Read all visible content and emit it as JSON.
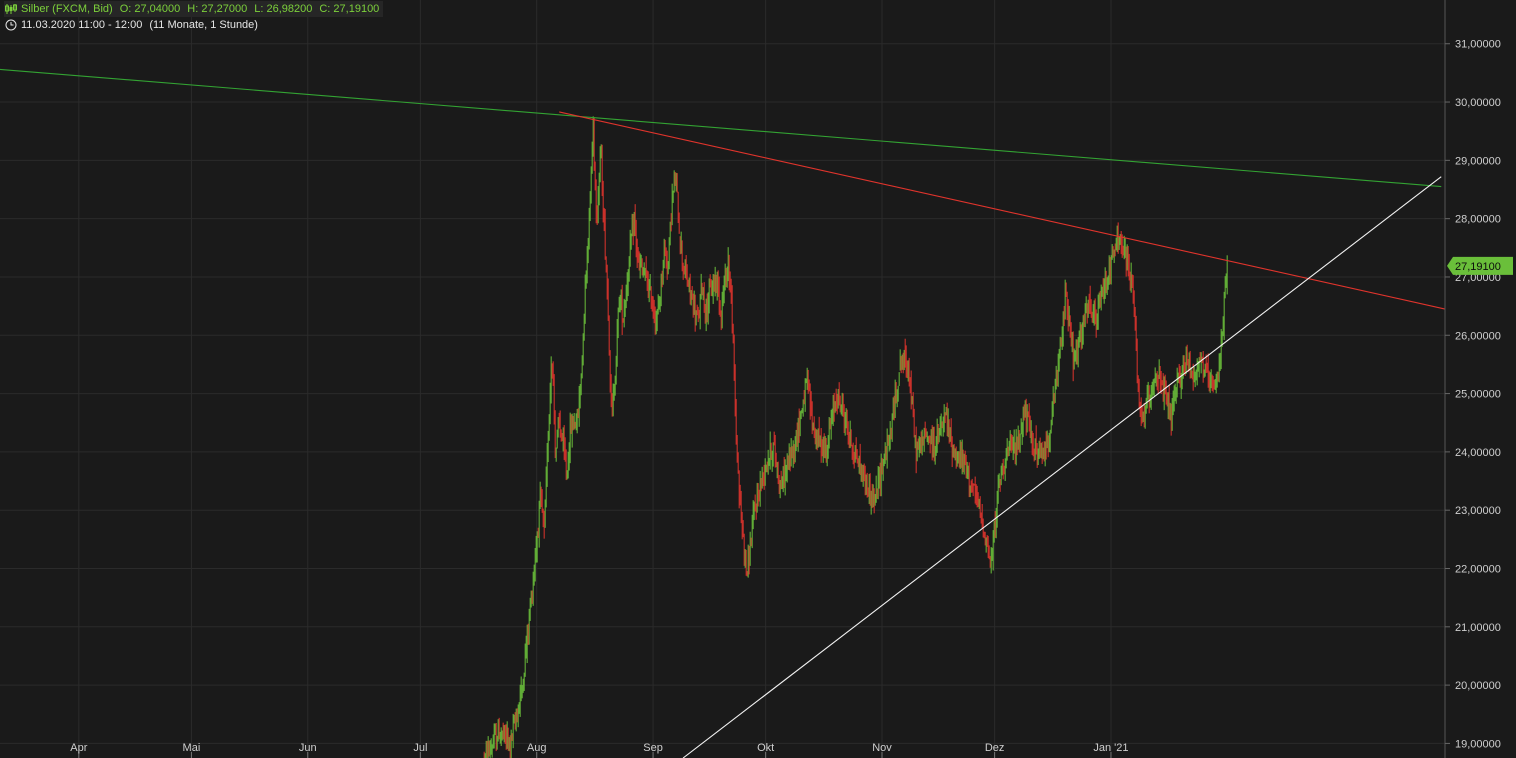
{
  "header": {
    "instrument": "Silber (FXCM, Bid)",
    "open_label": "O:",
    "open": "27,04000",
    "high_label": "H:",
    "high": "27,27000",
    "low_label": "L:",
    "low": "26,98200",
    "close_label": "C:",
    "close": "27,19100",
    "datetime": "11.03.2020 11:00 - 12:00",
    "range": "(11 Monate, 1 Stunde)",
    "icons": [
      "candlestick-icon",
      "clock-icon"
    ]
  },
  "chart_data": {
    "type": "candlestick",
    "x_tick_labels": [
      "Apr",
      "Mai",
      "Jun",
      "Jul",
      "Aug",
      "Sep",
      "Okt",
      "Nov",
      "Dez",
      "Jan '21"
    ],
    "y_tick_labels": [
      "19,00000",
      "20,00000",
      "21,00000",
      "22,00000",
      "23,00000",
      "24,00000",
      "25,00000",
      "26,00000",
      "27,00000",
      "28,00000",
      "29,00000",
      "30,00000",
      "31,00000"
    ],
    "y_range": [
      18.75,
      31.75
    ],
    "x_range": [
      "2020-03-11",
      "2021-03-31"
    ],
    "last_price_label": "27,19100",
    "grid": true,
    "colors": {
      "background": "#1a1a1a",
      "grid": "#2b2b2b",
      "up": "#6abf3a",
      "down": "#e0342c",
      "trend_green": "#33a333",
      "trend_red": "#e0342c",
      "trend_white": "#f2f2f2",
      "price_badge": "#6abf3a"
    },
    "trendlines": [
      {
        "color": "green",
        "points": [
          [
            "2020-03-11",
            30.56
          ],
          [
            "2021-03-30",
            28.55
          ]
        ]
      },
      {
        "color": "red",
        "points": [
          [
            "2020-08-07",
            29.83
          ],
          [
            "2021-03-31",
            26.45
          ]
        ]
      },
      {
        "color": "white",
        "points": [
          [
            "2020-09-09",
            18.75
          ],
          [
            "2021-03-30",
            28.72
          ]
        ]
      }
    ],
    "price_path": [
      [
        "2020-07-18",
        18.7
      ],
      [
        "2020-07-22",
        19.2
      ],
      [
        "2020-07-25",
        19.0
      ],
      [
        "2020-07-28",
        19.9
      ],
      [
        "2020-07-31",
        21.8
      ],
      [
        "2020-08-02",
        23.2
      ],
      [
        "2020-08-03",
        22.6
      ],
      [
        "2020-08-05",
        25.8
      ],
      [
        "2020-08-06",
        24.0
      ],
      [
        "2020-08-07",
        24.5
      ],
      [
        "2020-08-08",
        24.1
      ],
      [
        "2020-08-09",
        23.6
      ],
      [
        "2020-08-10",
        24.4
      ],
      [
        "2020-08-11",
        24.5
      ],
      [
        "2020-08-12",
        24.6
      ],
      [
        "2020-08-13",
        25.5
      ],
      [
        "2020-08-14",
        27.0
      ],
      [
        "2020-08-15",
        28.0
      ],
      [
        "2020-08-16",
        29.6
      ],
      [
        "2020-08-17",
        28.0
      ],
      [
        "2020-08-18",
        29.2
      ],
      [
        "2020-08-19",
        27.8
      ],
      [
        "2020-08-20",
        26.5
      ],
      [
        "2020-08-21",
        24.5
      ],
      [
        "2020-08-22",
        25.5
      ],
      [
        "2020-08-23",
        26.7
      ],
      [
        "2020-08-24",
        26.3
      ],
      [
        "2020-08-26",
        27.5
      ],
      [
        "2020-08-27",
        28.0
      ],
      [
        "2020-08-28",
        27.2
      ],
      [
        "2020-08-30",
        27.0
      ],
      [
        "2020-09-01",
        26.5
      ],
      [
        "2020-09-02",
        26.2
      ],
      [
        "2020-09-03",
        26.8
      ],
      [
        "2020-09-04",
        27.5
      ],
      [
        "2020-09-05",
        27.2
      ],
      [
        "2020-09-06",
        28.3
      ],
      [
        "2020-09-07",
        28.7
      ],
      [
        "2020-09-08",
        27.8
      ],
      [
        "2020-09-09",
        27.2
      ],
      [
        "2020-09-11",
        26.7
      ],
      [
        "2020-09-13",
        26.2
      ],
      [
        "2020-09-14",
        26.9
      ],
      [
        "2020-09-15",
        26.4
      ],
      [
        "2020-09-16",
        26.7
      ],
      [
        "2020-09-18",
        27.0
      ],
      [
        "2020-09-19",
        26.4
      ],
      [
        "2020-09-21",
        27.3
      ],
      [
        "2020-09-22",
        26.4
      ],
      [
        "2020-09-23",
        24.5
      ],
      [
        "2020-09-24",
        23.2
      ],
      [
        "2020-09-26",
        21.9
      ],
      [
        "2020-09-28",
        23.0
      ],
      [
        "2020-10-01",
        23.8
      ],
      [
        "2020-10-03",
        24.1
      ],
      [
        "2020-10-05",
        23.4
      ],
      [
        "2020-10-07",
        23.8
      ],
      [
        "2020-10-09",
        24.2
      ],
      [
        "2020-10-12",
        25.2
      ],
      [
        "2020-10-14",
        24.3
      ],
      [
        "2020-10-17",
        24.0
      ],
      [
        "2020-10-20",
        25.0
      ],
      [
        "2020-10-22",
        24.6
      ],
      [
        "2020-10-24",
        24.1
      ],
      [
        "2020-10-27",
        23.6
      ],
      [
        "2020-10-30",
        23.1
      ],
      [
        "2020-11-01",
        23.8
      ],
      [
        "2020-11-03",
        24.2
      ],
      [
        "2020-11-06",
        25.6
      ],
      [
        "2020-11-08",
        25.5
      ],
      [
        "2020-11-10",
        24.0
      ],
      [
        "2020-11-13",
        24.3
      ],
      [
        "2020-11-15",
        24.1
      ],
      [
        "2020-11-18",
        24.6
      ],
      [
        "2020-11-20",
        24.0
      ],
      [
        "2020-11-23",
        23.8
      ],
      [
        "2020-11-25",
        23.4
      ],
      [
        "2020-11-27",
        23.0
      ],
      [
        "2020-11-29",
        22.4
      ],
      [
        "2020-11-30",
        22.0
      ],
      [
        "2020-12-02",
        23.4
      ],
      [
        "2020-12-04",
        24.0
      ],
      [
        "2020-12-07",
        24.1
      ],
      [
        "2020-12-09",
        24.7
      ],
      [
        "2020-12-11",
        24.2
      ],
      [
        "2020-12-13",
        23.9
      ],
      [
        "2020-12-15",
        24.1
      ],
      [
        "2020-12-17",
        25.0
      ],
      [
        "2020-12-19",
        26.0
      ],
      [
        "2020-12-20",
        26.8
      ],
      [
        "2020-12-22",
        25.5
      ],
      [
        "2020-12-24",
        26.0
      ],
      [
        "2020-12-26",
        26.5
      ],
      [
        "2020-12-28",
        26.2
      ],
      [
        "2020-12-30",
        26.8
      ],
      [
        "2021-01-01",
        27.2
      ],
      [
        "2021-01-03",
        27.7
      ],
      [
        "2021-01-05",
        27.3
      ],
      [
        "2021-01-07",
        26.8
      ],
      [
        "2021-01-08",
        25.2
      ],
      [
        "2021-01-09",
        24.5
      ],
      [
        "2021-01-11",
        24.9
      ],
      [
        "2021-01-13",
        25.4
      ],
      [
        "2021-01-15",
        25.0
      ],
      [
        "2021-01-17",
        24.6
      ],
      [
        "2021-01-19",
        25.2
      ],
      [
        "2021-01-21",
        25.6
      ],
      [
        "2021-01-23",
        25.3
      ],
      [
        "2021-01-25",
        25.6
      ],
      [
        "2021-01-27",
        25.2
      ],
      [
        "2021-01-29",
        25.0
      ],
      [
        "2021-01-30",
        25.6
      ],
      [
        "2021-01-31",
        26.4
      ],
      [
        "2021-02-01",
        27.19
      ]
    ]
  }
}
